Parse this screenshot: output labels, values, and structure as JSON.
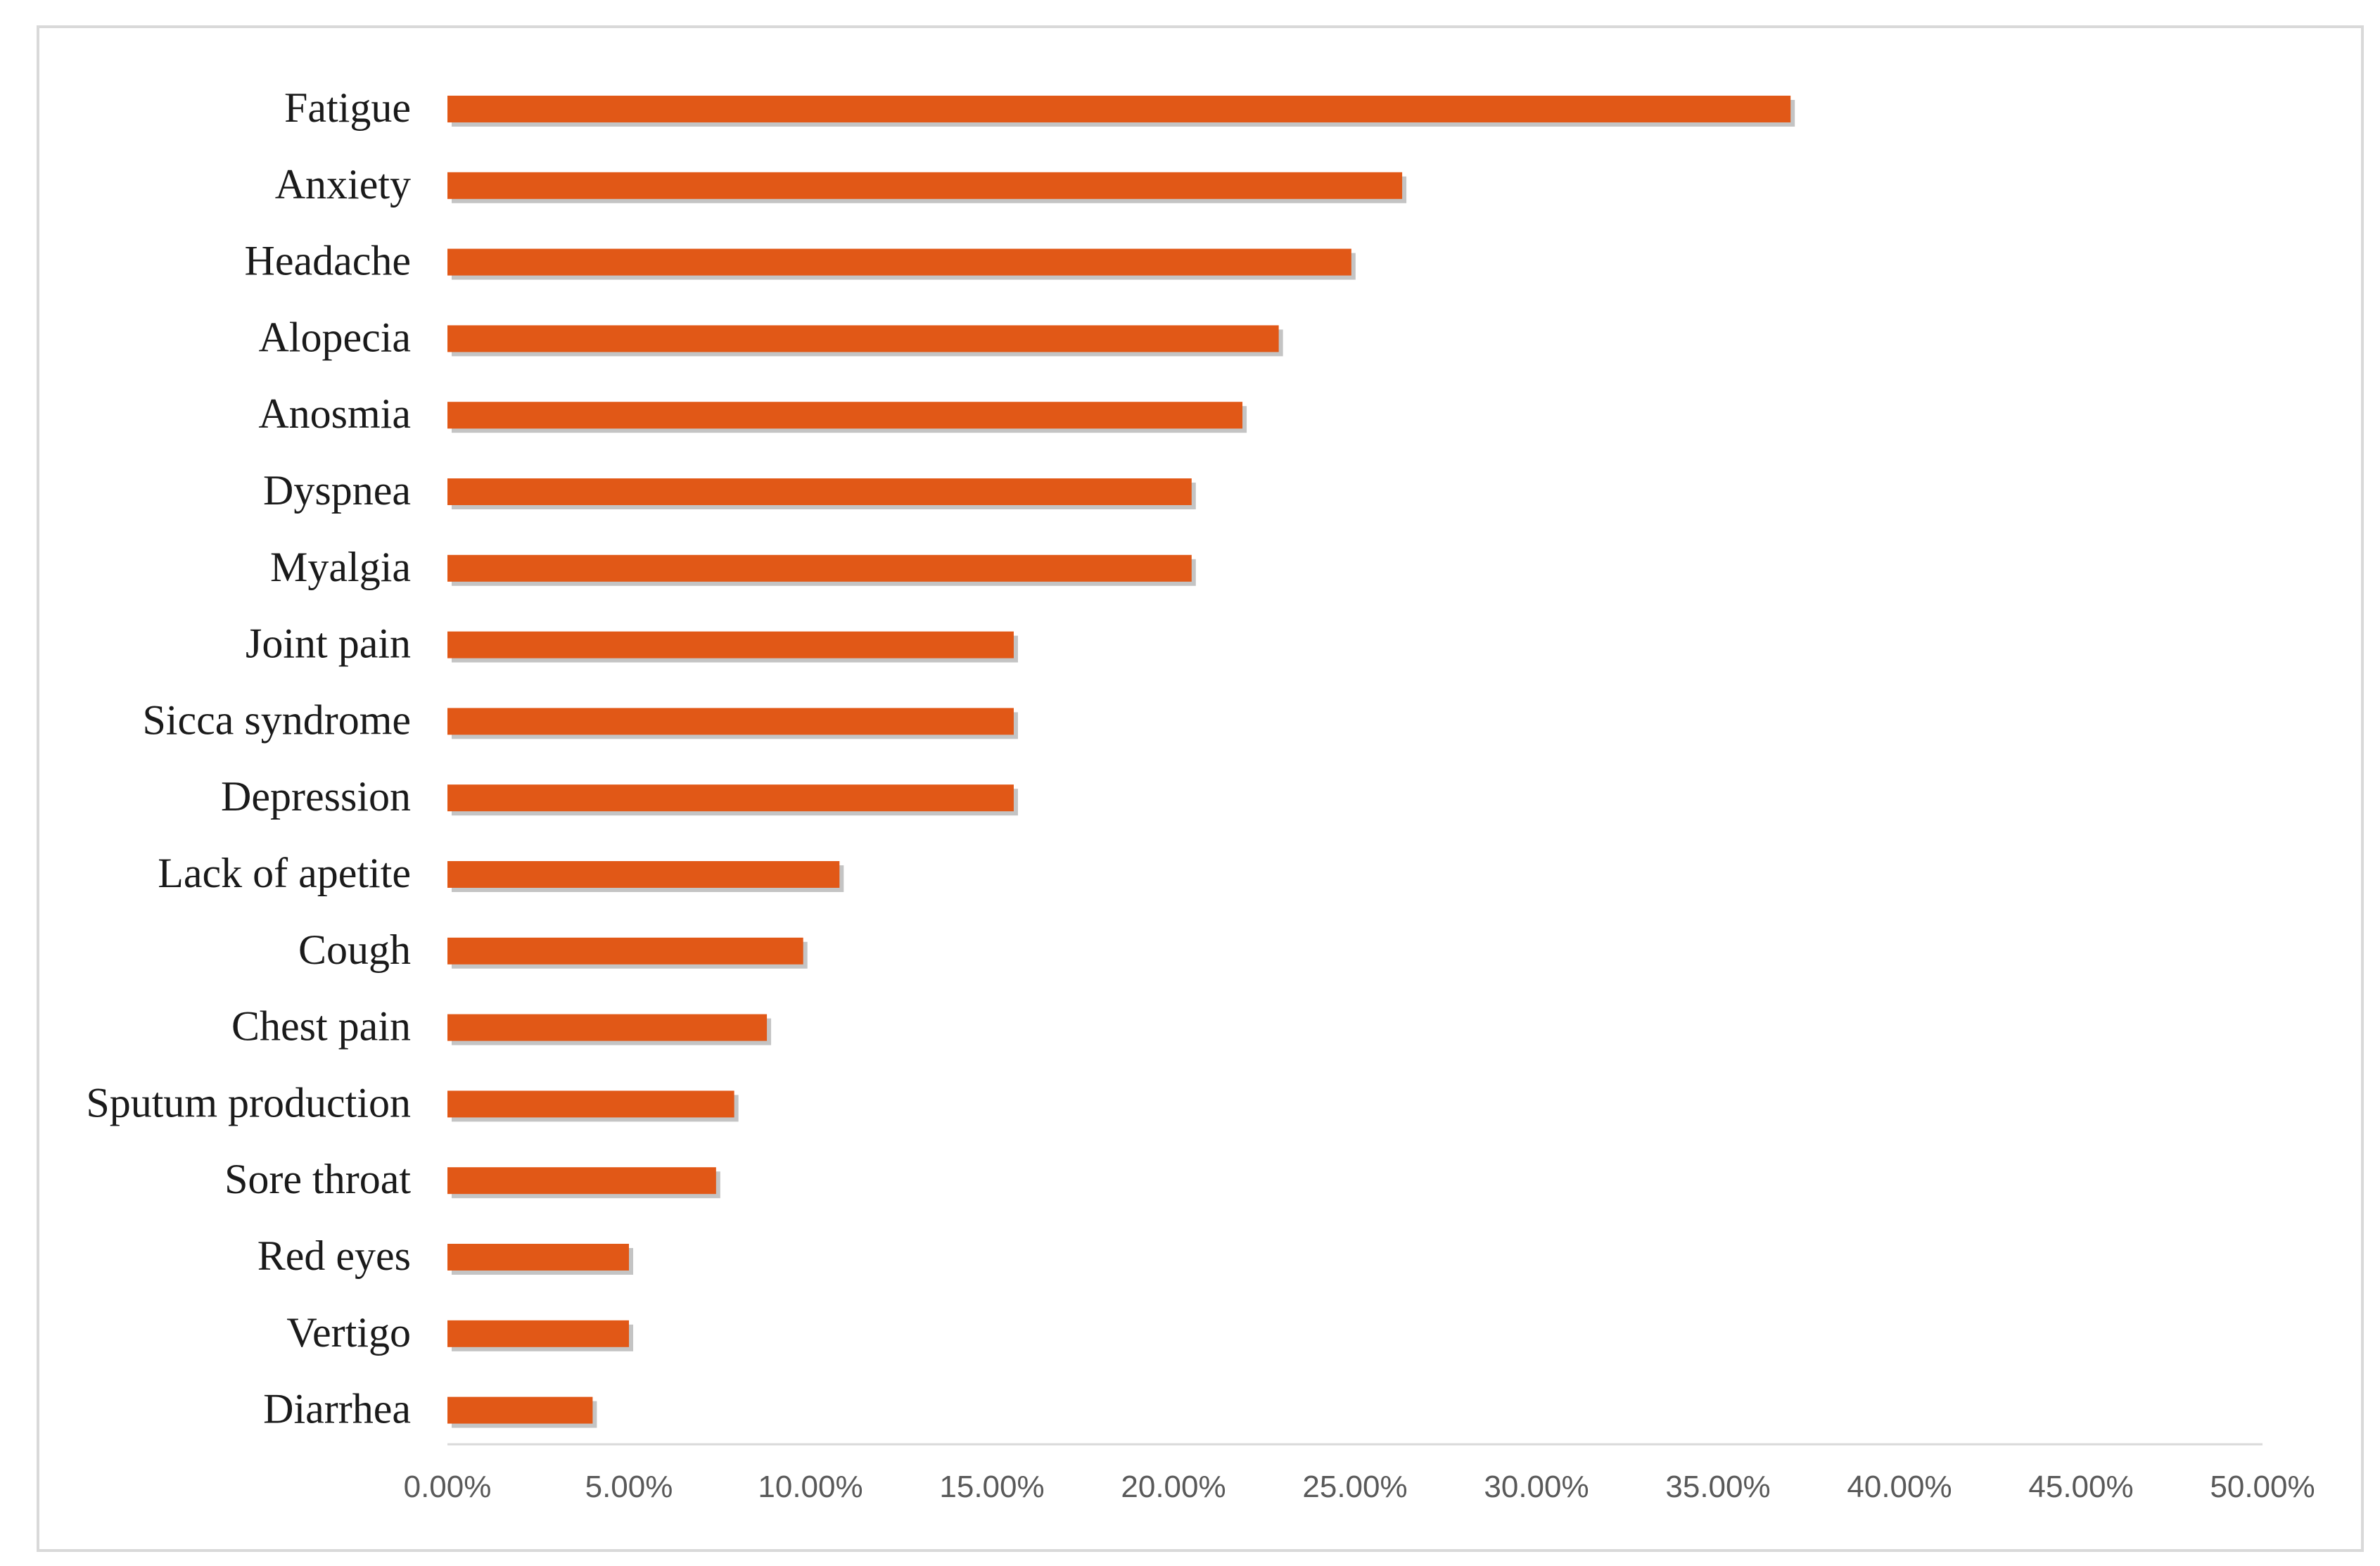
{
  "chart_data": {
    "type": "bar",
    "orientation": "horizontal",
    "title": "",
    "xlabel": "",
    "ylabel": "",
    "categories": [
      "Fatigue",
      "Anxiety",
      "Headache",
      "Alopecia",
      "Anosmia",
      "Dyspnea",
      "Myalgia",
      "Joint pain",
      "Sicca syndrome",
      "Depression",
      "Lack of apetite",
      "Cough",
      "Chest pain",
      "Sputum production",
      "Sore throat",
      "Red eyes",
      "Vertigo",
      "Diarrhea"
    ],
    "values": [
      37.0,
      26.3,
      24.9,
      22.9,
      21.9,
      20.5,
      20.5,
      15.6,
      15.6,
      15.6,
      10.8,
      9.8,
      8.8,
      7.9,
      7.4,
      5.0,
      5.0,
      4.0
    ],
    "xlim": [
      0,
      50
    ],
    "x_ticks": [
      "0.00%",
      "5.00%",
      "10.00%",
      "15.00%",
      "20.00%",
      "25.00%",
      "30.00%",
      "35.00%",
      "40.00%",
      "45.00%",
      "50.00%"
    ],
    "grid": false,
    "legend": "none",
    "bar_color": "#e15817",
    "shadow_color": "#b0b0b0",
    "axis_color": "#d9d9d9"
  }
}
